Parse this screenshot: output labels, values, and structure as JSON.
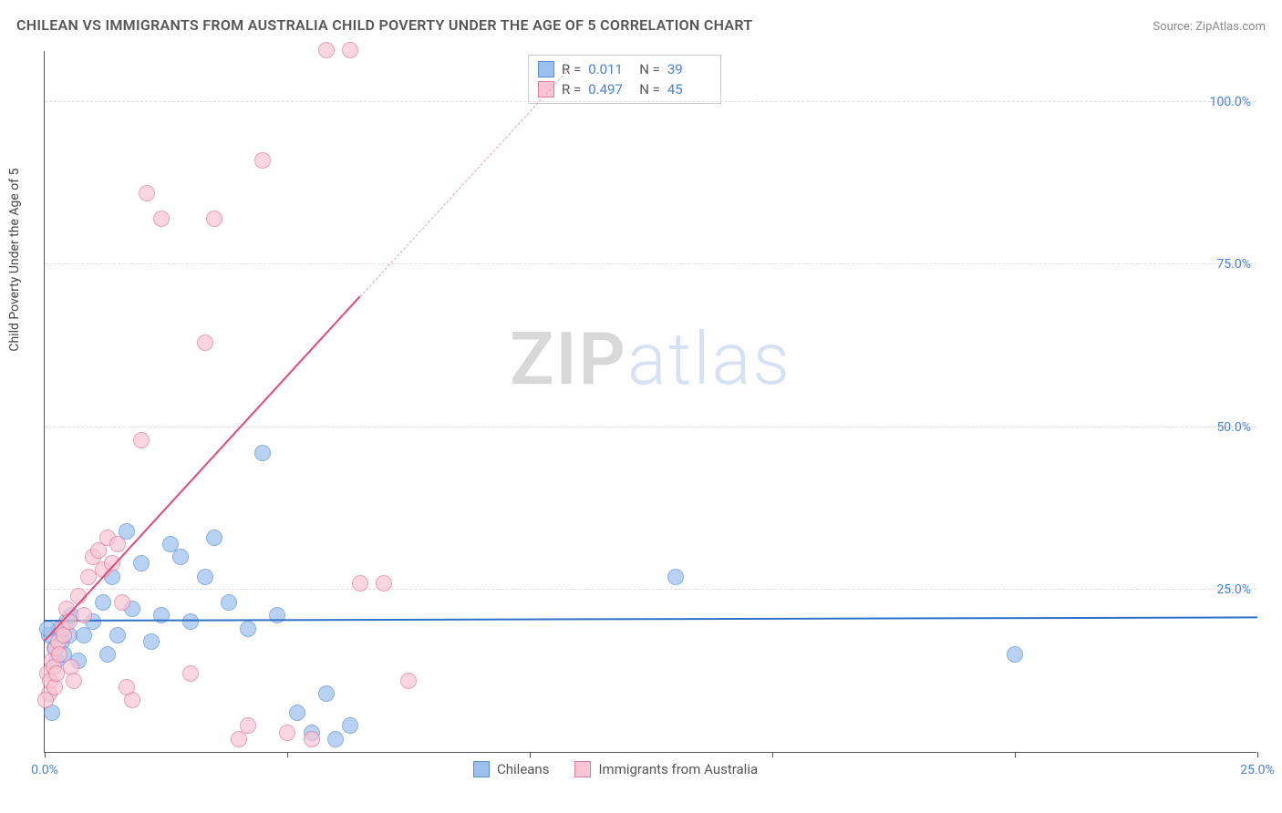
{
  "title": "CHILEAN VS IMMIGRANTS FROM AUSTRALIA CHILD POVERTY UNDER THE AGE OF 5 CORRELATION CHART",
  "source_label": "Source: ZipAtlas.com",
  "ylabel": "Child Poverty Under the Age of 5",
  "watermark_a": "ZIP",
  "watermark_b": "atlas",
  "chart": {
    "type": "scatter",
    "background_color": "#ffffff",
    "grid_color": "#dddddd",
    "axis_color": "#555555",
    "tick_label_color": "#4a7fd8",
    "xlim": [
      0,
      25
    ],
    "ylim": [
      0,
      108
    ],
    "xticks": [
      0,
      5,
      10,
      15,
      20,
      25
    ],
    "xtick_labels": [
      "0.0%",
      "",
      "",
      "",
      "",
      "25.0%"
    ],
    "yticks": [
      25,
      50,
      75,
      100
    ],
    "ytick_labels": [
      "25.0%",
      "50.0%",
      "75.0%",
      "100.0%"
    ],
    "point_radius": 9,
    "point_stroke_width": 1.5,
    "point_fill_opacity": 0.25,
    "series": [
      {
        "key": "chileans",
        "label": "Chileans",
        "color_fill": "#9cc0ee",
        "color_stroke": "#5a8fd6",
        "R": "0.011",
        "N": "39",
        "trend": {
          "x1": 0,
          "y1": 20.0,
          "x2": 25,
          "y2": 20.5,
          "color": "#2e73c9",
          "width": 2,
          "dash": "solid"
        },
        "points": [
          [
            0.1,
            18
          ],
          [
            0.15,
            6
          ],
          [
            0.2,
            16
          ],
          [
            0.25,
            14
          ],
          [
            0.3,
            19
          ],
          [
            0.35,
            17
          ],
          [
            0.4,
            15
          ],
          [
            0.45,
            20
          ],
          [
            0.5,
            18
          ],
          [
            0.55,
            21
          ],
          [
            0.7,
            14
          ],
          [
            0.8,
            18
          ],
          [
            1.0,
            20
          ],
          [
            1.2,
            23
          ],
          [
            1.3,
            15
          ],
          [
            1.4,
            27
          ],
          [
            1.5,
            18
          ],
          [
            1.7,
            34
          ],
          [
            1.8,
            22
          ],
          [
            2.0,
            29
          ],
          [
            2.2,
            17
          ],
          [
            2.4,
            21
          ],
          [
            2.6,
            32
          ],
          [
            2.8,
            30
          ],
          [
            3.0,
            20
          ],
          [
            3.3,
            27
          ],
          [
            3.5,
            33
          ],
          [
            3.8,
            23
          ],
          [
            4.2,
            19
          ],
          [
            4.5,
            46
          ],
          [
            4.8,
            21
          ],
          [
            5.2,
            6
          ],
          [
            5.5,
            3
          ],
          [
            5.8,
            9
          ],
          [
            6.0,
            2
          ],
          [
            6.3,
            4
          ],
          [
            13.0,
            27
          ],
          [
            20.0,
            15
          ],
          [
            0.05,
            19
          ]
        ]
      },
      {
        "key": "aus",
        "label": "Immigrants from Australia",
        "color_fill": "#f7c5d3",
        "color_stroke": "#e07a9a",
        "R": "0.497",
        "N": "45",
        "trend": {
          "x1": 0,
          "y1": 17,
          "x2": 6.5,
          "y2": 70,
          "color": "#e04a7a",
          "width": 2,
          "dash": "solid"
        },
        "trend_ext": {
          "x1": 6.5,
          "y1": 70,
          "x2": 10.8,
          "y2": 105,
          "color": "#e8a0b8",
          "width": 1.5,
          "dash": "dashed"
        },
        "points": [
          [
            0.05,
            12
          ],
          [
            0.1,
            9
          ],
          [
            0.12,
            11
          ],
          [
            0.15,
            14
          ],
          [
            0.18,
            13
          ],
          [
            0.2,
            10
          ],
          [
            0.22,
            16
          ],
          [
            0.25,
            12
          ],
          [
            0.28,
            17
          ],
          [
            0.3,
            15
          ],
          [
            0.35,
            19
          ],
          [
            0.4,
            18
          ],
          [
            0.45,
            22
          ],
          [
            0.5,
            20
          ],
          [
            0.55,
            13
          ],
          [
            0.6,
            11
          ],
          [
            0.7,
            24
          ],
          [
            0.8,
            21
          ],
          [
            0.9,
            27
          ],
          [
            1.0,
            30
          ],
          [
            1.1,
            31
          ],
          [
            1.2,
            28
          ],
          [
            1.3,
            33
          ],
          [
            1.4,
            29
          ],
          [
            1.5,
            32
          ],
          [
            1.6,
            23
          ],
          [
            1.8,
            8
          ],
          [
            2.0,
            48
          ],
          [
            2.1,
            86
          ],
          [
            2.4,
            82
          ],
          [
            3.0,
            12
          ],
          [
            3.3,
            63
          ],
          [
            3.5,
            82
          ],
          [
            4.0,
            2
          ],
          [
            4.2,
            4
          ],
          [
            4.5,
            91
          ],
          [
            5.0,
            3
          ],
          [
            5.5,
            2
          ],
          [
            5.8,
            108
          ],
          [
            6.3,
            108
          ],
          [
            6.5,
            26
          ],
          [
            7.0,
            26
          ],
          [
            7.5,
            11
          ],
          [
            1.7,
            10
          ],
          [
            0.02,
            8
          ]
        ]
      }
    ],
    "legend_series": [
      "chileans",
      "aus"
    ]
  }
}
